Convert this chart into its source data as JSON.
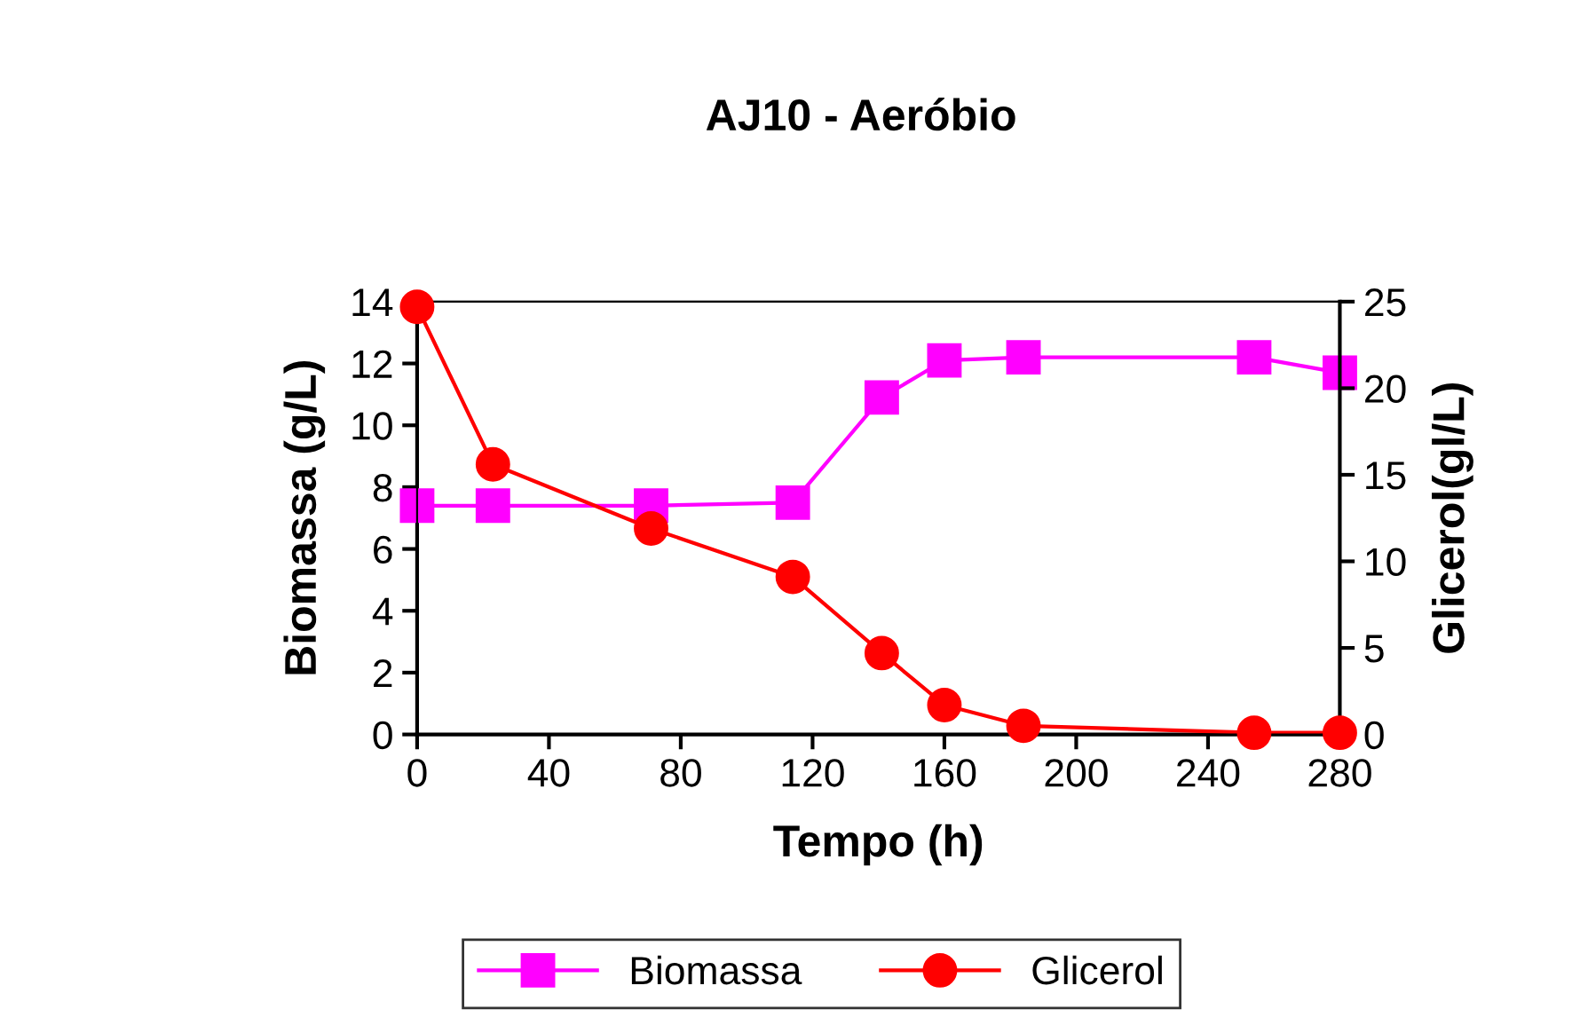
{
  "chart_data": {
    "type": "line",
    "title": "AJ10 - Aeróbio",
    "xlabel": "Tempo (h)",
    "ylabel": "Biomassa (g/L)",
    "y2label": "Glicerol(gl/L)",
    "series": [
      {
        "name": "Biomassa",
        "color": "#ff00ff",
        "marker": "square",
        "x": [
          0,
          23,
          71,
          114,
          141,
          160,
          184,
          254,
          280
        ],
        "values": [
          7.4,
          7.4,
          7.4,
          7.5,
          10.9,
          12.1,
          12.2,
          12.2,
          11.7
        ]
      },
      {
        "name": "Glicerol",
        "color": "#ff0000",
        "marker": "circle",
        "axis": "y2",
        "x": [
          0,
          23,
          71,
          114,
          141,
          160,
          184,
          254,
          280
        ],
        "values": [
          24.7,
          15.6,
          11.9,
          9.1,
          4.7,
          1.7,
          0.5,
          0.1,
          0.1
        ]
      }
    ],
    "xlim": [
      0,
      280
    ],
    "xticks": [
      0,
      40,
      80,
      120,
      160,
      200,
      240,
      280
    ],
    "ylim": [
      0,
      14
    ],
    "yticks": [
      0,
      2,
      4,
      6,
      8,
      10,
      12,
      14
    ],
    "y2lim": [
      0,
      25
    ],
    "y2ticks": [
      0,
      5,
      10,
      15,
      20,
      25
    ],
    "legend": "bottom",
    "grid": false
  }
}
